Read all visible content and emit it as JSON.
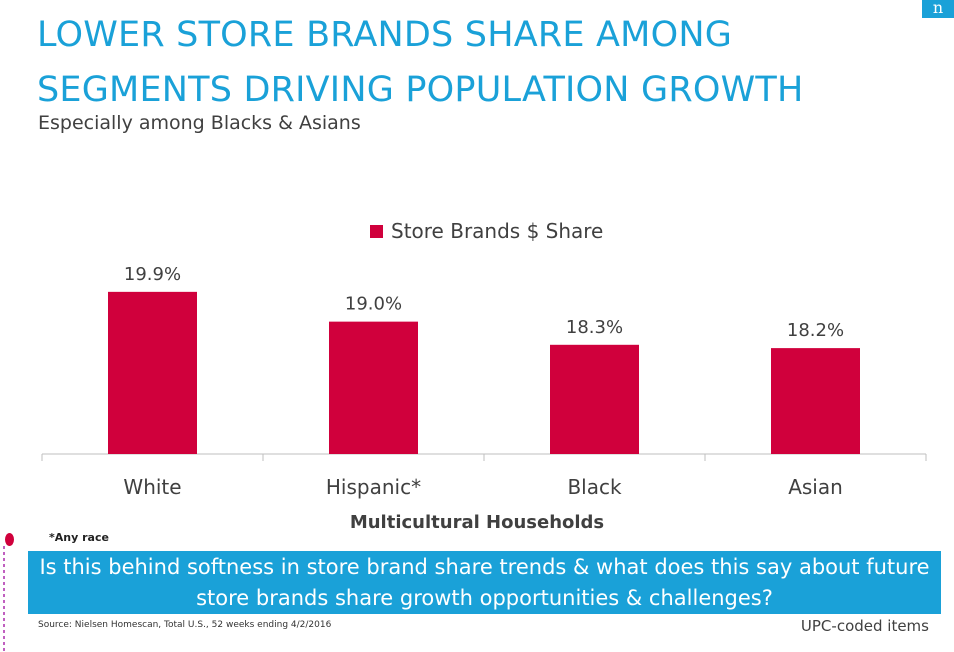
{
  "title_line1": "LOWER STORE BRANDS SHARE AMONG",
  "title_line2": "SEGMENTS DRIVING POPULATION GROWTH",
  "subtitle": "Especially among Blacks & Asians",
  "logo_text": "n",
  "chart_data": {
    "type": "bar",
    "title": "",
    "categories": [
      "White",
      "Hispanic*",
      "Black",
      "Asian"
    ],
    "series": [
      {
        "name": "Store Brands $ Share",
        "values": [
          19.9,
          19.0,
          18.3,
          18.2
        ],
        "color": "#d0003c"
      }
    ],
    "data_labels": [
      "19.9%",
      "19.0%",
      "18.3%",
      "18.2%"
    ],
    "xlabel": "Multicultural Households",
    "ylabel": "",
    "ylim": [
      15.0,
      20.5
    ],
    "grid": false,
    "legend_position": "top-center"
  },
  "footnote": "*Any race",
  "banner_text": "Is this behind softness in store brand share trends & what does this say about future store brands share growth opportunities & challenges?",
  "source": "Source:  Nielsen Homescan, Total U.S., 52 weeks ending 4/2/2016",
  "upc_note": "UPC-coded items",
  "colors": {
    "accent": "#1aa1d8",
    "bar": "#d0003c",
    "text": "#404040"
  }
}
